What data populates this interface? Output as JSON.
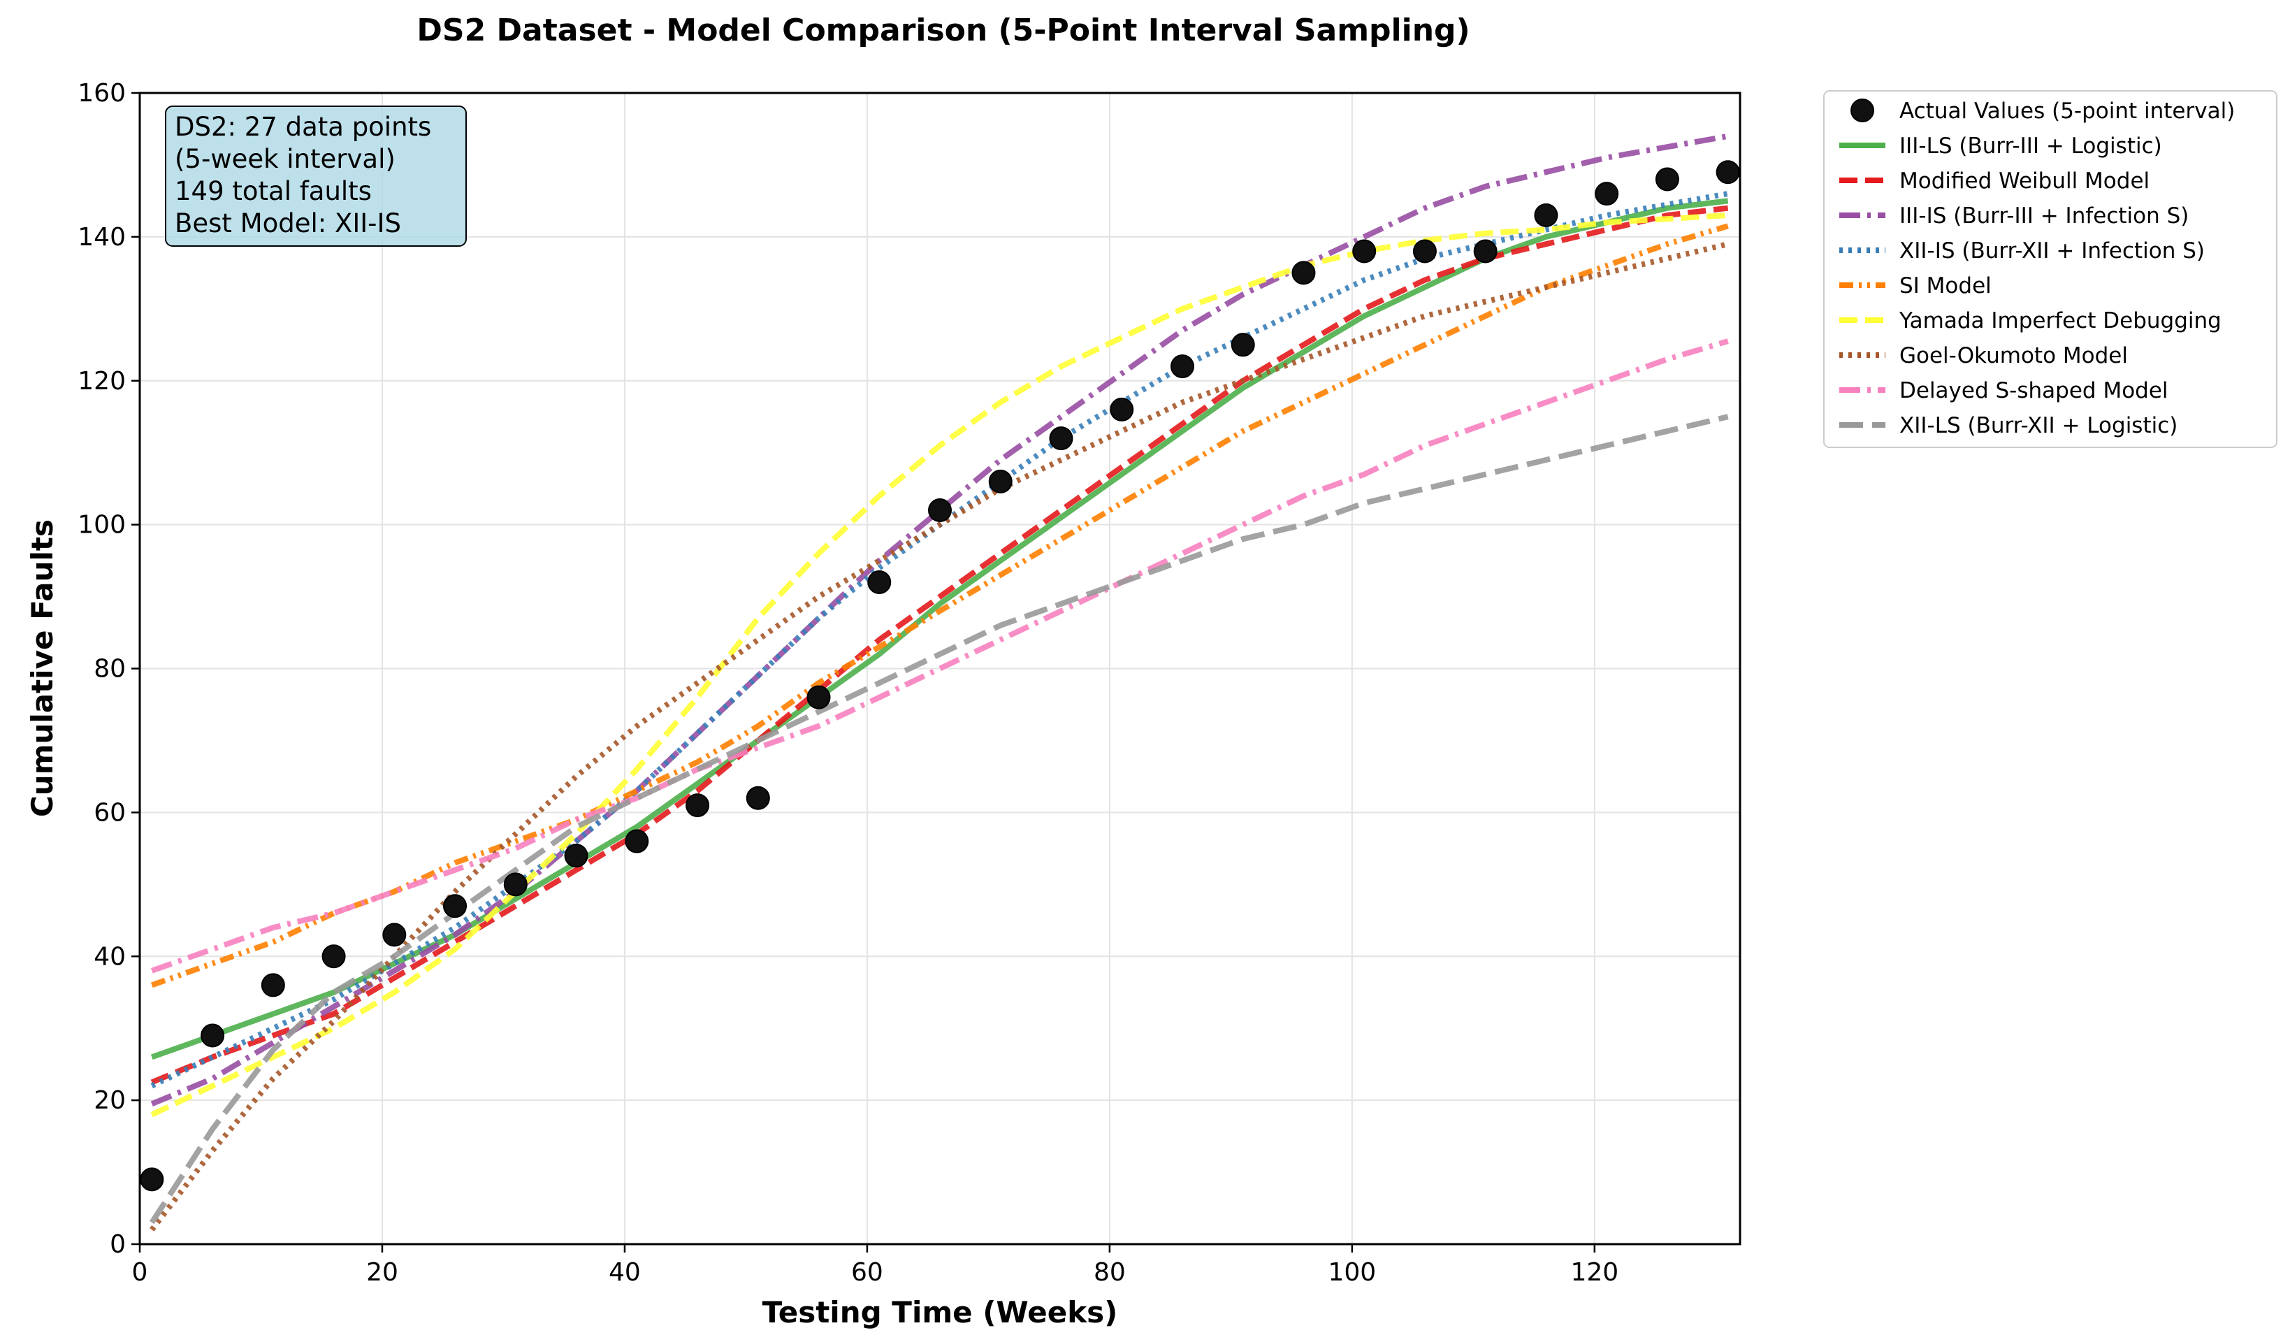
{
  "chart_data": {
    "type": "line",
    "title": "DS2 Dataset - Model Comparison (5-Point Interval Sampling)",
    "xlabel": "Testing Time (Weeks)",
    "ylabel": "Cumulative Faults",
    "xlim": [
      0,
      132
    ],
    "ylim": [
      0,
      160
    ],
    "x_ticks": [
      0,
      20,
      40,
      60,
      80,
      100,
      120
    ],
    "y_ticks": [
      0,
      20,
      40,
      60,
      80,
      100,
      120,
      140,
      160
    ],
    "grid": true,
    "legend_position": "outside-top-right",
    "annotation": [
      "DS2: 27 data points",
      "(5-week interval)",
      "149 total faults",
      "Best Model: XII-IS"
    ],
    "scatter": {
      "name": "Actual Values (5-point interval)",
      "color": "#111111",
      "x": [
        1,
        6,
        11,
        16,
        21,
        26,
        31,
        36,
        41,
        46,
        51,
        56,
        61,
        66,
        71,
        76,
        81,
        86,
        91,
        96,
        101,
        106,
        111,
        116,
        121,
        126,
        131
      ],
      "y": [
        9,
        29,
        36,
        40,
        43,
        47,
        50,
        54,
        56,
        61,
        62,
        76,
        92,
        102,
        106,
        112,
        116,
        122,
        125,
        135,
        138,
        138,
        138,
        143,
        146,
        148,
        149
      ]
    },
    "x": [
      1,
      6,
      11,
      16,
      21,
      26,
      31,
      36,
      41,
      46,
      51,
      56,
      61,
      66,
      71,
      76,
      81,
      86,
      91,
      96,
      101,
      106,
      111,
      116,
      121,
      126,
      131
    ],
    "series": [
      {
        "name": "III-LS (Burr-III + Logistic)",
        "color": "#4daf4a",
        "dash": "solid",
        "values": [
          26,
          29,
          32,
          35,
          39,
          43,
          48,
          53,
          58,
          64,
          70,
          76,
          82,
          89,
          95,
          101,
          107,
          113,
          119,
          124,
          129,
          133,
          137,
          140,
          142,
          144,
          145
        ]
      },
      {
        "name": "Modified Weibull Model",
        "color": "#e41a1c",
        "dash": "dashed",
        "values": [
          22.5,
          26,
          29,
          32,
          37,
          42,
          47,
          52,
          57,
          63,
          70,
          77,
          84,
          90,
          96,
          102,
          108,
          114,
          120,
          125,
          130,
          134,
          137,
          139,
          141,
          143,
          144
        ]
      },
      {
        "name": "III-IS (Burr-III + Infection S)",
        "color": "#984ea3",
        "dash": "dashdot",
        "values": [
          19.5,
          23,
          28,
          33,
          38,
          43,
          49,
          56,
          63,
          71,
          79,
          87,
          95,
          102,
          109,
          115,
          121,
          127,
          132,
          136,
          140,
          144,
          147,
          149,
          151,
          152.5,
          154
        ]
      },
      {
        "name": "XII-IS (Burr-XII + Infection S)",
        "color": "#377eb8",
        "dash": "dotted",
        "values": [
          22,
          26,
          30,
          34,
          39,
          44,
          50,
          56,
          63,
          71,
          79,
          87,
          94,
          100,
          106,
          112,
          117,
          122,
          126,
          130,
          134,
          137,
          139,
          141,
          143,
          144.5,
          146
        ]
      },
      {
        "name": "SI Model",
        "color": "#ff7f00",
        "dash": "dashdotdot",
        "values": [
          36,
          39,
          42,
          46,
          49,
          53,
          56,
          59,
          63,
          67,
          72,
          78,
          83,
          88,
          93,
          98,
          103,
          108,
          113,
          117,
          121,
          125,
          129,
          133,
          136,
          139,
          141.5
        ]
      },
      {
        "name": "Yamada Imperfect Debugging",
        "color": "#ffff33",
        "dash": "dashed",
        "values": [
          18,
          22,
          26,
          30,
          35,
          41,
          49,
          57,
          66,
          76,
          87,
          96,
          104,
          111,
          117,
          122,
          126,
          130,
          133,
          136,
          138,
          139.5,
          140.5,
          141,
          142,
          142.5,
          143
        ]
      },
      {
        "name": "Goel-Okumoto Model",
        "color": "#a65628",
        "dash": "dotted",
        "values": [
          2,
          13,
          23,
          31,
          40,
          49,
          57,
          65,
          72,
          78,
          84,
          90,
          95,
          100,
          105,
          109,
          113,
          117,
          120,
          123,
          126,
          129,
          131,
          133,
          135,
          137,
          139
        ]
      },
      {
        "name": "Delayed S-shaped Model",
        "color": "#f781bf",
        "dash": "dashdot",
        "values": [
          38,
          41,
          44,
          46,
          49,
          52,
          55,
          59,
          62,
          66,
          69,
          72,
          76,
          80,
          84,
          88,
          92,
          96,
          100,
          104,
          107,
          111,
          114,
          117,
          120,
          123,
          125.5
        ]
      },
      {
        "name": "XII-LS (Burr-XII + Logistic)",
        "color": "#999999",
        "dash": "longdash",
        "values": [
          3,
          16,
          27,
          35,
          40,
          46,
          52,
          58,
          62,
          66,
          70,
          74,
          78,
          82,
          86,
          89,
          92,
          95,
          98,
          100,
          103,
          105,
          107,
          109,
          111,
          113,
          115
        ]
      }
    ]
  }
}
